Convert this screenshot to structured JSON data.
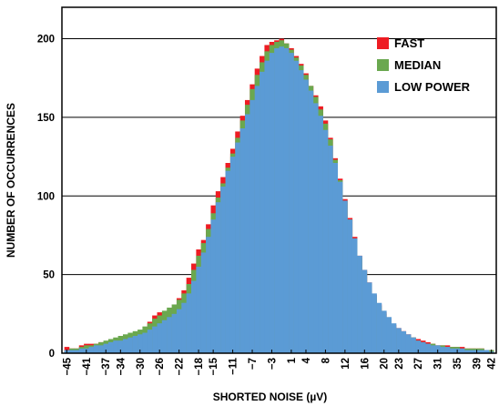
{
  "chart_data": {
    "type": "histogram",
    "xlabel": "SHORTED NOISE (µV)",
    "ylabel": "NUMBER OF OCCURRENCES",
    "xlim": [
      -46,
      43
    ],
    "ylim": [
      0,
      220
    ],
    "grid": true,
    "legend_position": "top-right",
    "x_ticks": [
      -45,
      -41,
      -37,
      -34,
      -30,
      -26,
      -22,
      -18,
      -15,
      -11,
      -7,
      -3,
      1,
      4,
      8,
      12,
      16,
      20,
      23,
      27,
      31,
      35,
      39,
      42
    ],
    "y_ticks": [
      0,
      50,
      100,
      150,
      200
    ],
    "x": [
      -45,
      -44,
      -43,
      -42,
      -41,
      -40,
      -39,
      -38,
      -37,
      -36,
      -35,
      -34,
      -33,
      -32,
      -31,
      -30,
      -29,
      -28,
      -27,
      -26,
      -25,
      -24,
      -23,
      -22,
      -21,
      -20,
      -19,
      -18,
      -17,
      -16,
      -15,
      -14,
      -13,
      -12,
      -11,
      -10,
      -9,
      -8,
      -7,
      -6,
      -5,
      -4,
      -3,
      -2,
      -1,
      0,
      1,
      2,
      3,
      4,
      5,
      6,
      7,
      8,
      9,
      10,
      11,
      12,
      13,
      14,
      15,
      16,
      17,
      18,
      19,
      20,
      21,
      22,
      23,
      24,
      25,
      26,
      27,
      28,
      29,
      30,
      31,
      32,
      33,
      34,
      35,
      36,
      37,
      38,
      39,
      40,
      41,
      42
    ],
    "series": [
      {
        "name": "FAST",
        "color": "#ee1c23",
        "values": [
          4,
          3,
          3,
          5,
          6,
          6,
          6,
          7,
          7,
          7,
          8,
          9,
          10,
          11,
          12,
          13,
          14,
          20,
          24,
          26,
          26,
          27,
          29,
          35,
          40,
          48,
          57,
          66,
          72,
          82,
          94,
          103,
          112,
          121,
          130,
          141,
          151,
          161,
          171,
          181,
          189,
          196,
          198,
          199,
          200,
          197,
          194,
          189,
          184,
          178,
          170,
          164,
          157,
          148,
          137,
          124,
          111,
          98,
          86,
          74,
          62,
          53,
          45,
          37,
          31,
          26,
          22,
          18,
          16,
          14,
          12,
          10,
          9,
          8,
          7,
          6,
          5,
          5,
          5,
          4,
          4,
          4,
          3,
          3,
          3,
          3,
          2,
          2
        ]
      },
      {
        "name": "MEDIAN",
        "color": "#6aa84f",
        "values": [
          2,
          3,
          3,
          4,
          5,
          5,
          6,
          7,
          8,
          9,
          10,
          11,
          12,
          13,
          14,
          15,
          17,
          19,
          22,
          24,
          27,
          29,
          31,
          34,
          38,
          44,
          53,
          62,
          70,
          79,
          89,
          99,
          108,
          118,
          127,
          137,
          148,
          158,
          168,
          177,
          185,
          192,
          196,
          198,
          199,
          197,
          193,
          188,
          183,
          177,
          170,
          163,
          155,
          146,
          136,
          123,
          110,
          97,
          85,
          73,
          61,
          52,
          44,
          36,
          30,
          25,
          21,
          17,
          15,
          13,
          11,
          10,
          8,
          7,
          6,
          6,
          5,
          5,
          4,
          4,
          4,
          3,
          3,
          3,
          3,
          3,
          2,
          2
        ]
      },
      {
        "name": "LOW POWER",
        "color": "#5b9bd5",
        "values": [
          2,
          2,
          2,
          3,
          3,
          4,
          5,
          5,
          6,
          7,
          8,
          8,
          9,
          10,
          11,
          12,
          13,
          15,
          17,
          19,
          21,
          23,
          25,
          28,
          32,
          38,
          46,
          55,
          64,
          74,
          85,
          96,
          106,
          116,
          125,
          134,
          143,
          152,
          161,
          170,
          179,
          186,
          191,
          194,
          195,
          194,
          191,
          186,
          180,
          174,
          167,
          159,
          151,
          142,
          132,
          121,
          109,
          97,
          85,
          73,
          62,
          53,
          45,
          38,
          32,
          27,
          23,
          19,
          16,
          14,
          12,
          10,
          8,
          7,
          6,
          5,
          5,
          4,
          4,
          3,
          3,
          3,
          2,
          2,
          2,
          2,
          2,
          1
        ]
      }
    ]
  }
}
